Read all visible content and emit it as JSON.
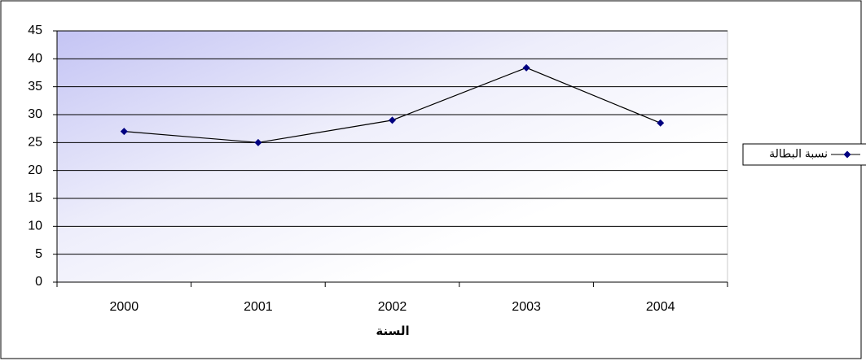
{
  "chart_data": {
    "type": "line",
    "x_label": "السنة",
    "categories": [
      "2000",
      "2001",
      "2002",
      "2003",
      "2004"
    ],
    "series": [
      {
        "name": "نسبة البطالة",
        "color": "#000080",
        "line_color": "#000000",
        "values": [
          27,
          25,
          29,
          38.4,
          28.5
        ]
      }
    ],
    "ylim": [
      0,
      45
    ],
    "yticks": [
      0,
      5,
      10,
      15,
      20,
      25,
      30,
      35,
      40,
      45
    ],
    "grid": true,
    "legend": "right"
  }
}
